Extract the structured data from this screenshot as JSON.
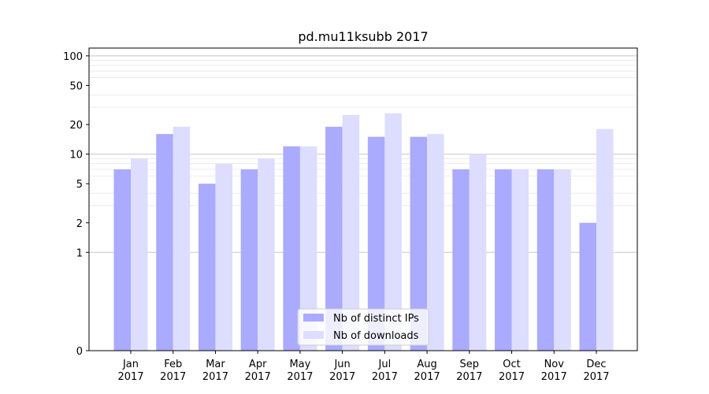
{
  "chart_data": {
    "type": "bar",
    "title": "pd.mu11ksubb 2017",
    "xlabel": "",
    "ylabel": "",
    "yscale": "symlog",
    "ylim": [
      0,
      120
    ],
    "yticks": [
      0,
      1,
      2,
      5,
      10,
      20,
      50,
      100
    ],
    "categories": [
      [
        "Jan",
        "2017"
      ],
      [
        "Feb",
        "2017"
      ],
      [
        "Mar",
        "2017"
      ],
      [
        "Apr",
        "2017"
      ],
      [
        "May",
        "2017"
      ],
      [
        "Jun",
        "2017"
      ],
      [
        "Jul",
        "2017"
      ],
      [
        "Aug",
        "2017"
      ],
      [
        "Sep",
        "2017"
      ],
      [
        "Oct",
        "2017"
      ],
      [
        "Nov",
        "2017"
      ],
      [
        "Dec",
        "2017"
      ]
    ],
    "series": [
      {
        "name": "Nb of distinct IPs",
        "color": "#aaaaff",
        "values": [
          7,
          16,
          5,
          7,
          12,
          19,
          15,
          15,
          7,
          7,
          7,
          2
        ]
      },
      {
        "name": "Nb of downloads",
        "color": "#ddddff",
        "values": [
          9,
          19,
          8,
          9,
          12,
          25,
          26,
          16,
          10,
          7,
          7,
          18
        ]
      }
    ],
    "legend": "bottom-center",
    "grid": true
  }
}
